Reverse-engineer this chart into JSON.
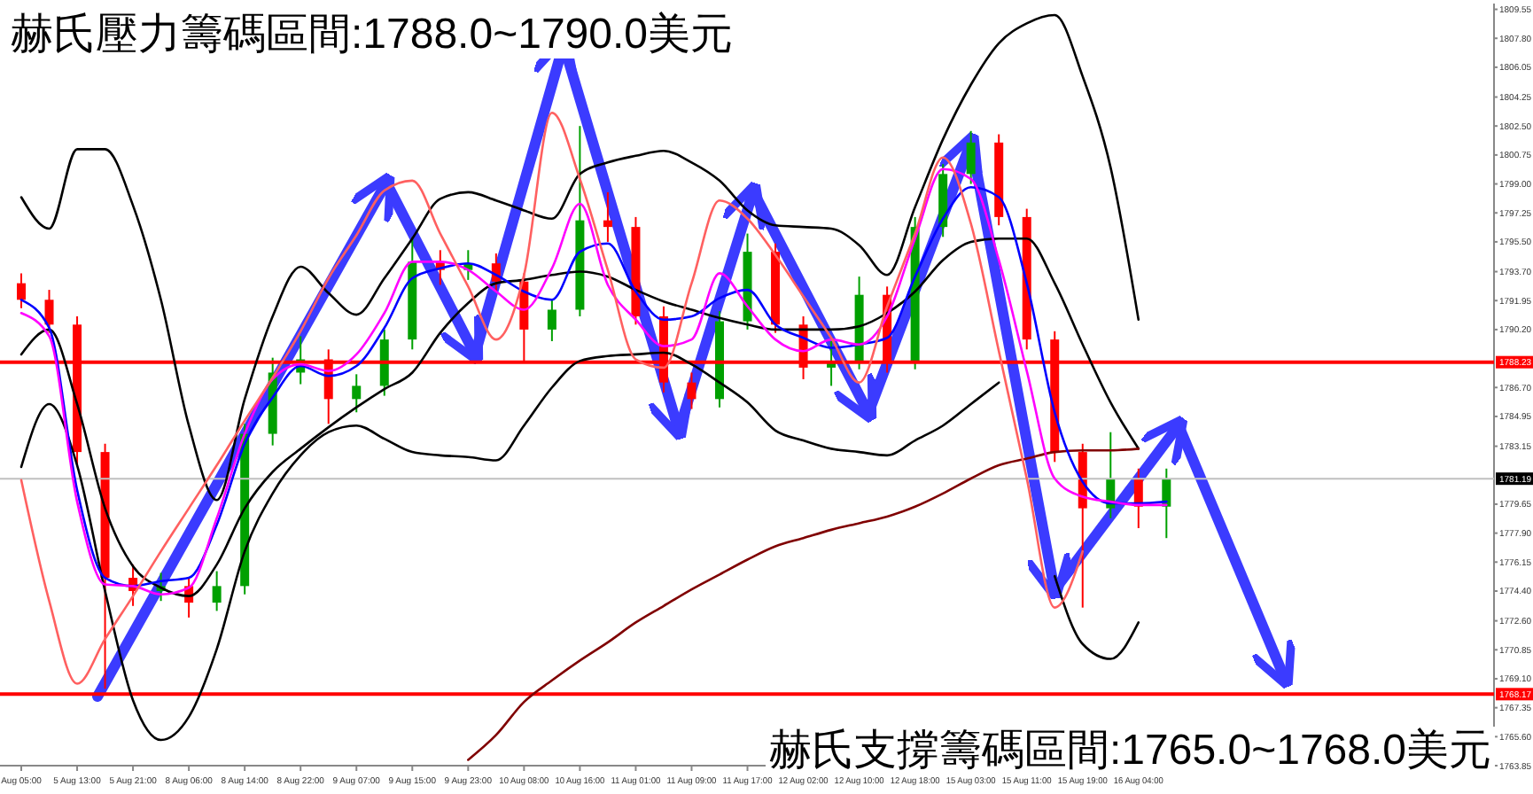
{
  "chart_data": {
    "type": "candlestick",
    "title": "赫氏壓力籌碼區間:1788.0~1790.0美元",
    "annotations": [
      "赫氏支撐籌碼區間:1765.0~1768.0美元"
    ],
    "categories": [
      "Aug 05:00",
      null,
      "5 Aug 13:00",
      null,
      "5 Aug 21:00",
      null,
      "8 Aug 06:00",
      null,
      "8 Aug 14:00",
      null,
      "8 Aug 22:00",
      null,
      "9 Aug 07:00",
      null,
      "9 Aug 15:00",
      null,
      "9 Aug 23:00",
      null,
      "10 Aug 08:00",
      null,
      "10 Aug 16:00",
      null,
      "11 Aug 01:00",
      null,
      "11 Aug 09:00",
      null,
      "11 Aug 17:00",
      null,
      "12 Aug 02:00",
      null,
      "12 Aug 10:00",
      null,
      "12 Aug 18:00",
      null,
      "15 Aug 03:00",
      null,
      "15 Aug 11:00",
      null,
      "15 Aug 19:00",
      null,
      "16 Aug 04:00",
      null
    ],
    "ohlc": [
      [
        1793.0,
        1793.6,
        1791.5,
        1792.0
      ],
      [
        1792.0,
        1792.6,
        1790.0,
        1790.5
      ],
      [
        1790.5,
        1791.0,
        1782.0,
        1782.8
      ],
      [
        1782.8,
        1783.3,
        1768.5,
        1775.2
      ],
      [
        1775.2,
        1776.0,
        1773.5,
        1774.4
      ],
      [
        1774.4,
        1775.5,
        1773.8,
        1774.7
      ],
      [
        1774.7,
        1775.2,
        1772.8,
        1773.7
      ],
      [
        1773.7,
        1775.6,
        1773.2,
        1774.7
      ],
      [
        1774.7,
        1784.5,
        1774.2,
        1783.9
      ],
      [
        1783.9,
        1788.5,
        1783.2,
        1787.6
      ],
      [
        1787.6,
        1789.8,
        1786.9,
        1788.4
      ],
      [
        1788.4,
        1789.0,
        1784.5,
        1786.0
      ],
      [
        1786.0,
        1787.5,
        1785.2,
        1786.8
      ],
      [
        1786.8,
        1790.2,
        1786.2,
        1789.6
      ],
      [
        1789.6,
        1795.8,
        1789.0,
        1794.3
      ],
      [
        1794.3,
        1795.0,
        1792.9,
        1793.8
      ],
      [
        1793.8,
        1795.0,
        1793.2,
        1794.2
      ],
      [
        1794.2,
        1794.8,
        1792.5,
        1793.1
      ],
      [
        1793.1,
        1793.6,
        1788.2,
        1790.2
      ],
      [
        1790.2,
        1792.0,
        1789.5,
        1791.4
      ],
      [
        1791.4,
        1802.5,
        1791.0,
        1796.8
      ],
      [
        1796.8,
        1798.5,
        1795.5,
        1796.4
      ],
      [
        1796.4,
        1797.0,
        1790.5,
        1791.0
      ],
      [
        1791.0,
        1791.6,
        1786.4,
        1787.0
      ],
      [
        1787.0,
        1787.6,
        1785.4,
        1786.0
      ],
      [
        1786.0,
        1791.3,
        1785.5,
        1790.7
      ],
      [
        1790.7,
        1796.0,
        1790.2,
        1794.9
      ],
      [
        1794.9,
        1795.4,
        1790.0,
        1790.5
      ],
      [
        1790.5,
        1791.0,
        1787.2,
        1787.9
      ],
      [
        1787.9,
        1789.5,
        1786.8,
        1788.3
      ],
      [
        1788.3,
        1793.4,
        1787.8,
        1792.3
      ],
      [
        1792.3,
        1792.8,
        1787.6,
        1788.3
      ],
      [
        1788.3,
        1797.0,
        1787.8,
        1796.4
      ],
      [
        1796.4,
        1800.2,
        1795.8,
        1799.6
      ],
      [
        1799.6,
        1802.2,
        1799.0,
        1801.5
      ],
      [
        1801.5,
        1802.0,
        1796.5,
        1797.0
      ],
      [
        1797.0,
        1797.5,
        1789.0,
        1789.6
      ],
      [
        1789.6,
        1790.1,
        1782.2,
        1782.8
      ],
      [
        1782.8,
        1783.3,
        1773.4,
        1779.4
      ],
      [
        1779.4,
        1784.0,
        1778.8,
        1781.2
      ],
      [
        1781.2,
        1781.8,
        1778.2,
        1779.5
      ],
      [
        1779.5,
        1781.8,
        1777.6,
        1781.2
      ]
    ],
    "series": [
      {
        "type": "line",
        "color": "#000000",
        "values": [
          1798.2,
          1796.3,
          1801.1,
          1801.1,
          1797.7,
          1792.0,
          1784.4,
          1779.9,
          1786.0,
          1791.0,
          1794.0,
          1792.4,
          1791.1,
          1793.3,
          1795.7,
          1798.1,
          1798.5,
          1798.0,
          1797.4,
          1796.9,
          1799.6,
          1800.3,
          1800.7,
          1801.0,
          1800.3,
          1799.2,
          1797.4,
          1796.5,
          1796.4,
          1796.3,
          1795.3,
          1793.5,
          1797.6,
          1801.7,
          1805.0,
          1807.5,
          1808.7,
          1809.2,
          1805.5,
          1800.0,
          1790.8,
          null
        ]
      },
      {
        "type": "line",
        "color": "#000000",
        "values": [
          1788.7,
          1790.2,
          1785.7,
          1779.4,
          1775.9,
          1774.6,
          1774.1,
          1776.0,
          1779.4,
          1781.6,
          1783.0,
          1784.3,
          1785.5,
          1786.6,
          1787.6,
          1790.0,
          1791.8,
          1793.0,
          1793.2,
          1793.5,
          1793.7,
          1793.4,
          1792.6,
          1791.9,
          1791.4,
          1790.9,
          1790.5,
          1790.2,
          1790.2,
          1790.2,
          1790.4,
          1791.2,
          1792.5,
          1794.4,
          1795.5,
          1795.7,
          1795.7,
          1793.0,
          1789.3,
          1785.8,
          1783.0,
          null
        ]
      },
      {
        "type": "line",
        "color": "#000000",
        "values": [
          1781.9,
          1785.7,
          1782.0,
          1774.4,
          1767.8,
          1765.4,
          1766.8,
          1770.9,
          1776.8,
          1780.3,
          1782.6,
          1784.0,
          1784.4,
          1783.6,
          1782.8,
          1782.6,
          1782.5,
          1782.3,
          1784.4,
          1786.7,
          1788.3,
          1788.6,
          1788.7,
          1788.8,
          1788.1,
          1787.0,
          1785.8,
          1784.1,
          1783.5,
          1783.0,
          1782.8,
          1782.6,
          1783.5,
          1784.4,
          1785.7,
          1787.0,
          null,
          1775.3,
          1771.2,
          1770.3,
          1772.5,
          null
        ]
      },
      {
        "type": "line",
        "color": "#800000",
        "values": [
          null,
          null,
          null,
          null,
          null,
          null,
          null,
          null,
          null,
          null,
          null,
          null,
          null,
          null,
          null,
          null,
          1764.2,
          1765.7,
          1767.7,
          1769.0,
          1770.2,
          1771.3,
          1772.5,
          1773.5,
          1774.5,
          1775.4,
          1776.3,
          1777.1,
          1777.6,
          1778.1,
          1778.5,
          1778.9,
          1779.5,
          1780.3,
          1781.2,
          1782.0,
          1782.4,
          1782.8,
          1782.9,
          1782.9,
          1783.0,
          null
        ]
      },
      {
        "type": "line",
        "color": "#0000ff",
        "values": [
          1792.0,
          1790.3,
          1780.5,
          1775.2,
          1774.7,
          1775.0,
          1775.2,
          1778.4,
          1783.3,
          1786.1,
          1788.0,
          1787.4,
          1788.0,
          1790.3,
          1793.3,
          1793.9,
          1794.2,
          1793.5,
          1792.5,
          1792.0,
          1794.9,
          1795.4,
          1792.5,
          1790.8,
          1791.0,
          1792.1,
          1792.6,
          1790.5,
          1789.7,
          1789.1,
          1789.3,
          1789.7,
          1793.4,
          1796.9,
          1798.8,
          1798.2,
          1793.0,
          1785.2,
          1781.0,
          1779.7,
          1779.7,
          1779.8
        ]
      },
      {
        "type": "line",
        "color": "#ff00ff",
        "values": [
          1791.2,
          1789.8,
          1779.8,
          1774.8,
          1774.7,
          1774.2,
          1774.6,
          1778.8,
          1783.9,
          1787.2,
          1788.1,
          1787.7,
          1788.7,
          1791.2,
          1794.3,
          1794.3,
          1793.8,
          1792.5,
          1791.4,
          1793.9,
          1797.8,
          1792.9,
          1790.8,
          1789.2,
          1789.6,
          1793.6,
          1791.6,
          1789.6,
          1788.9,
          1789.6,
          1789.3,
          1791.0,
          1795.7,
          1799.9,
          1799.3,
          1794.4,
          1787.7,
          1781.2,
          1780.1,
          1779.8,
          1779.6,
          1779.6
        ]
      },
      {
        "type": "line",
        "color": "#ff6060",
        "values": [
          1781.1,
          1773.8,
          1768.8,
          1771.5,
          1774.1,
          1776.8,
          1779.4,
          1782.0,
          1784.7,
          1787.3,
          1790.1,
          1793.3,
          1795.9,
          1798.6,
          1799.2,
          1796.0,
          1792.8,
          1789.6,
          1793.5,
          1803.3,
          1799.3,
          1793.8,
          1788.4,
          1787.9,
          1793.0,
          1798.0,
          1796.9,
          1794.7,
          1792.2,
          1789.7,
          1787.0,
          1791.6,
          1796.0,
          1800.6,
          1796.6,
          1788.9,
          1781.2,
          1773.4,
          1776.8,
          null,
          null,
          null
        ]
      }
    ],
    "ref_lines": [
      {
        "axis": "y",
        "value": 1788.23,
        "label": "1788.23",
        "color": "#ff0000"
      },
      {
        "axis": "y",
        "value": 1768.17,
        "label": "1768.17",
        "color": "#ff0000"
      },
      {
        "axis": "y",
        "value": 1781.19,
        "label": "1781.19",
        "color": "#c0c0c0"
      }
    ],
    "ylim": [
      1763.85,
      1809.9
    ],
    "yticks": [
      1809.55,
      {
        "value": 1807.8,
        "label": "1807.80"
      },
      1806.05,
      1804.25,
      {
        "value": 1802.5,
        "label": "1802.50"
      },
      1800.75,
      {
        "value": 1799.0,
        "label": "1799.00"
      },
      1797.25,
      {
        "value": 1795.5,
        "label": "1795.50"
      },
      {
        "value": 1793.7,
        "label": "1793.70"
      },
      1791.95,
      {
        "value": 1790.2,
        "label": "1790.20"
      },
      {
        "value": 1786.7,
        "label": "1786.70"
      },
      1784.95,
      1783.15,
      1779.65,
      {
        "value": 1777.9,
        "label": "1777.90"
      },
      1776.15,
      {
        "value": 1774.4,
        "label": "1774.40"
      },
      {
        "value": 1772.6,
        "label": "1772.60"
      },
      1770.85,
      {
        "value": 1769.1,
        "label": "1769.10"
      },
      1767.35,
      {
        "value": 1765.6,
        "label": "1765.60"
      },
      1763.85
    ]
  }
}
